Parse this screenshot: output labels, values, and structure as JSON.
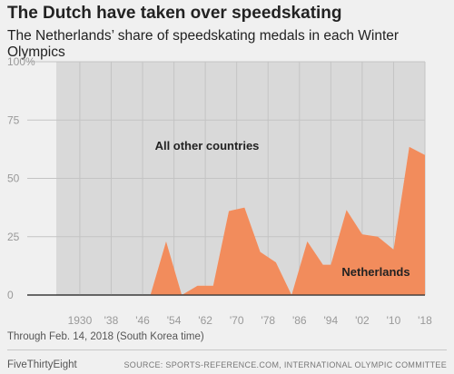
{
  "header": {
    "title": "The Dutch have taken over speedskating",
    "subtitle": "The Netherlands’ share of speedskating medals in each Winter Olympics"
  },
  "footer": {
    "note": "Through Feb. 14, 2018 (South Korea time)",
    "brand": "FiveThirtyEight",
    "source": "SOURCE: SPORTS-REFERENCE.COM, INTERNATIONAL OLYMPIC COMMITTEE"
  },
  "colors": {
    "netherlands": "#f28c5c",
    "other": "#d9d9d9",
    "background": "#f0f0f0"
  },
  "chart_data": {
    "type": "area",
    "title": "The Dutch have taken over speedskating",
    "subtitle": "The Netherlands’ share of speedskating medals in each Winter Olympics",
    "x": [
      1924,
      1928,
      1932,
      1936,
      1948,
      1952,
      1956,
      1960,
      1964,
      1968,
      1972,
      1976,
      1980,
      1984,
      1988,
      1992,
      1994,
      1998,
      2002,
      2006,
      2010,
      2014,
      2018
    ],
    "series": [
      {
        "name": "Netherlands",
        "values": [
          0,
          0,
          0,
          0,
          0,
          23,
          0,
          4,
          4,
          36,
          37.5,
          18.5,
          14,
          0,
          23,
          13,
          13,
          36.5,
          26,
          25,
          19.5,
          63.5,
          60
        ]
      },
      {
        "name": "All other countries",
        "values": [
          100,
          100,
          100,
          100,
          100,
          77,
          100,
          96,
          96,
          64,
          62.5,
          81.5,
          86,
          100,
          77,
          87,
          87,
          63.5,
          74,
          75,
          80.5,
          36.5,
          40
        ]
      }
    ],
    "x_ticks": [
      1930,
      1938,
      1946,
      1954,
      1962,
      1970,
      1978,
      1986,
      1994,
      2002,
      2010,
      2018
    ],
    "x_tick_labels": [
      "1930",
      "'38",
      "'46",
      "'54",
      "'62",
      "'70",
      "'78",
      "'86",
      "'94",
      "'02",
      "'10",
      "'18"
    ],
    "y_ticks": [
      0,
      25,
      50,
      75,
      100
    ],
    "y_tick_labels": [
      "0",
      "25",
      "50",
      "75",
      "100%"
    ],
    "xlim": [
      1924,
      2018
    ],
    "ylim": [
      0,
      100
    ],
    "grid": true,
    "stacked": true
  }
}
